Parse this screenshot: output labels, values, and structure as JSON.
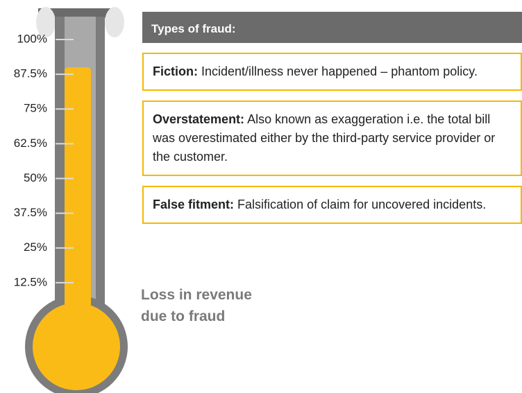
{
  "chart_data": {
    "type": "thermometer",
    "value": 90,
    "color": "#fbbb16",
    "ylim": [
      0,
      100
    ],
    "yticks": [
      {
        "value": 100,
        "label": "100%"
      },
      {
        "value": 87.5,
        "label": "87.5%"
      },
      {
        "value": 75,
        "label": "75%"
      },
      {
        "value": 62.5,
        "label": "62.5%"
      },
      {
        "value": 50,
        "label": "50%"
      },
      {
        "value": 37.5,
        "label": "37.5%"
      },
      {
        "value": 25,
        "label": "25%"
      },
      {
        "value": 12.5,
        "label": "12.5%"
      }
    ],
    "caption": [
      "Loss in revenue",
      "due to fraud"
    ]
  },
  "panel": {
    "title": "Types of fraud:",
    "items": [
      {
        "term": "Fiction:",
        "text": "Incident/illness never happened – phantom policy."
      },
      {
        "term": "Overstatement:",
        "text": "Also known as exaggeration i.e. the total bill was overestimated either by the third-party service provider or the customer."
      },
      {
        "term": "False fitment:",
        "text": "Falsification of claim for uncovered incidents."
      }
    ]
  }
}
